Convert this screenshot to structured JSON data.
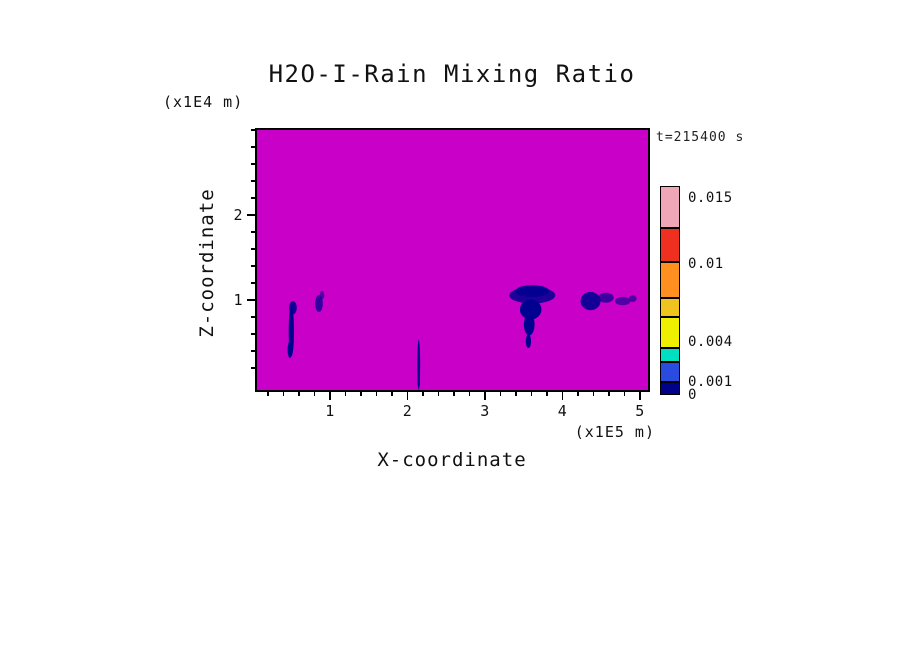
{
  "figure": {
    "title": "H2O-I-Rain Mixing Ratio",
    "timestamp": "t=215400 s",
    "xlabel": "X-coordinate",
    "ylabel": "Z-coordinate",
    "x_units": "(x1E5 m)",
    "y_units": "(x1E4 m)"
  },
  "colors": {
    "field_background": "#C800C8",
    "rain_feature": "#000090",
    "axis": "#000000",
    "text": "#111111"
  },
  "chart_data": {
    "type": "heatmap",
    "title": "H2O-I-Rain Mixing Ratio",
    "time_label": "t=215400 s",
    "time_seconds": 215400,
    "x_axis": {
      "label": "X-coordinate",
      "units": "(x1E5 m)",
      "range": [
        0.03,
        5.13
      ],
      "major_ticks": [
        1,
        2,
        3,
        4,
        5
      ]
    },
    "z_axis": {
      "label": "Z-coordinate",
      "units": "(x1E4 m)",
      "range": [
        -0.08,
        3.02
      ],
      "major_ticks": [
        1,
        2
      ]
    },
    "minor_tick_step": 0.2,
    "background_value": 0,
    "colorbar": {
      "labels": [
        {
          "text": "0.015",
          "value": 0.015
        },
        {
          "text": "0.01",
          "value": 0.01
        },
        {
          "text": "0.004",
          "value": 0.004
        },
        {
          "text": "0.001",
          "value": 0.001
        },
        {
          "text": "0",
          "value": 0
        }
      ],
      "segments": [
        {
          "min": 0,
          "max": 0.001,
          "color": "#000088"
        },
        {
          "min": 0.001,
          "max": 0.0025,
          "color": "#2A4BDF"
        },
        {
          "min": 0.0025,
          "max": 0.0036,
          "color": "#00DFC0"
        },
        {
          "min": 0.0036,
          "max": 0.0059,
          "color": "#EFEF00"
        },
        {
          "min": 0.0059,
          "max": 0.0074,
          "color": "#EFC41F"
        },
        {
          "min": 0.0074,
          "max": 0.0101,
          "color": "#FF8F1F"
        },
        {
          "min": 0.0101,
          "max": 0.0127,
          "color": "#EF2F1F"
        },
        {
          "min": 0.0127,
          "max": 0.0159,
          "color": "#EFA7B7"
        }
      ]
    },
    "features": [
      {
        "name": "rain-streak-1",
        "ellipses": [
          [
            0.48,
            0.62,
            0.035,
            0.3,
            1
          ],
          [
            0.5,
            0.9,
            0.05,
            0.08,
            0.9
          ],
          [
            0.46,
            0.4,
            0.03,
            0.1,
            1
          ]
        ]
      },
      {
        "name": "rain-speckle-1",
        "ellipses": [
          [
            0.84,
            0.95,
            0.05,
            0.1,
            0.75
          ],
          [
            0.88,
            1.05,
            0.03,
            0.05,
            0.6
          ]
        ]
      },
      {
        "name": "rain-shaft-1",
        "ellipses": [
          [
            2.14,
            0.22,
            0.018,
            0.3,
            1
          ],
          [
            2.14,
            0.02,
            0.015,
            0.08,
            1
          ]
        ]
      },
      {
        "name": "rain-funnel",
        "ellipses": [
          [
            3.62,
            1.05,
            0.3,
            0.1,
            0.85
          ],
          [
            3.62,
            1.1,
            0.22,
            0.07,
            0.9
          ],
          [
            3.6,
            0.88,
            0.14,
            0.12,
            1
          ],
          [
            3.58,
            0.7,
            0.07,
            0.13,
            1
          ],
          [
            3.57,
            0.5,
            0.035,
            0.08,
            1
          ]
        ]
      },
      {
        "name": "rain-band",
        "ellipses": [
          [
            4.38,
            0.98,
            0.13,
            0.11,
            0.9
          ],
          [
            4.58,
            1.02,
            0.1,
            0.06,
            0.7
          ],
          [
            4.8,
            0.98,
            0.1,
            0.05,
            0.6
          ],
          [
            4.93,
            1.01,
            0.05,
            0.04,
            0.6
          ]
        ]
      }
    ]
  }
}
